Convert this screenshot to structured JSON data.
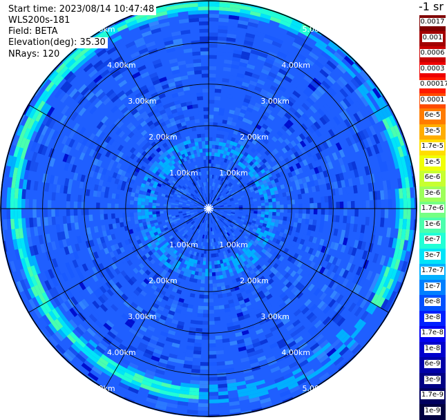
{
  "info": {
    "start_time": "Start time: 2023/08/14 10:47:48",
    "device": "WLS200s-181",
    "field": "Field: BETA",
    "elevation": "Elevation(deg): 35.30",
    "nrays": "NRays: 120"
  },
  "chart_data": {
    "type": "heatmap",
    "title": "",
    "units_label": "-1 sr",
    "field": "BETA",
    "elevation_deg": 35.3,
    "n_rays": 120,
    "max_range_km": 5.0,
    "range_rings_km": [
      1,
      2,
      3,
      4,
      5
    ],
    "ring_labels": [
      "1.00km",
      "2.00km",
      "3.00km",
      "4.00km",
      "5.00km"
    ],
    "spoke_angles_deg": [
      0,
      30,
      60,
      90,
      120,
      150,
      180,
      210,
      240,
      270,
      300,
      330
    ],
    "colorbar": [
      {
        "label": "0.0017",
        "color": "#7f0000"
      },
      {
        "label": "0.001",
        "color": "#a30000"
      },
      {
        "label": "0.0006",
        "color": "#c80000"
      },
      {
        "label": "0.0003",
        "color": "#ee0000"
      },
      {
        "label": "0.00017",
        "color": "#ff1a00"
      },
      {
        "label": "0.0001",
        "color": "#ff4b00"
      },
      {
        "label": "6e-5",
        "color": "#ff7c00"
      },
      {
        "label": "3e-5",
        "color": "#ffad00"
      },
      {
        "label": "1.7e-5",
        "color": "#ffde00"
      },
      {
        "label": "1e-5",
        "color": "#f0ff06"
      },
      {
        "label": "6e-6",
        "color": "#c7ff30"
      },
      {
        "label": "3e-6",
        "color": "#9dff5a"
      },
      {
        "label": "1.7e-6",
        "color": "#74ff83"
      },
      {
        "label": "1e-6",
        "color": "#4affad"
      },
      {
        "label": "6e-7",
        "color": "#21ffd6"
      },
      {
        "label": "3e-7",
        "color": "#00e4f8"
      },
      {
        "label": "1.7e-7",
        "color": "#00b0ff"
      },
      {
        "label": "1e-7",
        "color": "#0080ff"
      },
      {
        "label": "6e-8",
        "color": "#0050ff"
      },
      {
        "label": "3e-8",
        "color": "#0020ff"
      },
      {
        "label": "1.7e-8",
        "color": "#0000f1"
      },
      {
        "label": "1e-8",
        "color": "#0000cd"
      },
      {
        "label": "6e-9",
        "color": "#0000a8"
      },
      {
        "label": "3e-9",
        "color": "#000084"
      },
      {
        "label": "1.7e-9",
        "color": "#00005f"
      },
      {
        "label": "1e-9",
        "color": "#000040"
      }
    ],
    "features": [
      {
        "name": "aerosol-layer-arc",
        "range_km": [
          4.6,
          5.2
        ],
        "value": "1e-6"
      },
      {
        "name": "inner-bright-ring",
        "range_km": [
          1.2,
          1.7
        ],
        "value": "1.7e-7"
      }
    ],
    "background_value": "6e-8"
  }
}
